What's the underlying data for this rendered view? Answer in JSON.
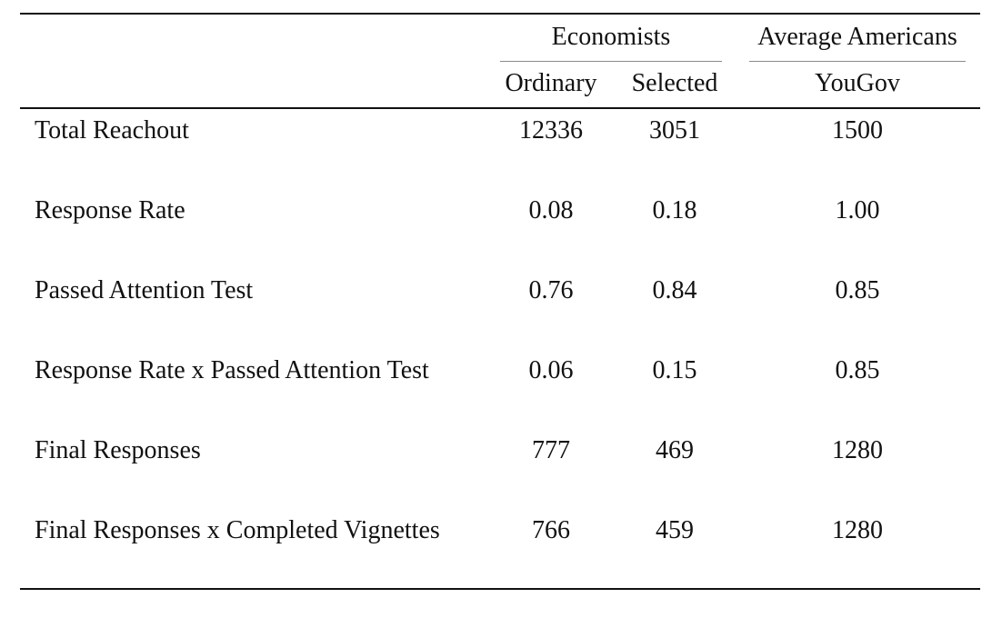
{
  "table": {
    "group_headers": {
      "economists": "Economists",
      "average_americans": "Average Americans"
    },
    "sub_headers": {
      "ordinary": "Ordinary",
      "selected": "Selected",
      "yougov": "YouGov"
    },
    "rows": [
      {
        "label": "Total Reachout",
        "ordinary": "12336",
        "selected": "3051",
        "yougov": "1500"
      },
      {
        "label": "Response Rate",
        "ordinary": "0.08",
        "selected": "0.18",
        "yougov": "1.00"
      },
      {
        "label": "Passed Attention Test",
        "ordinary": "0.76",
        "selected": "0.84",
        "yougov": "0.85"
      },
      {
        "label": "Response Rate x Passed Attention Test",
        "ordinary": "0.06",
        "selected": "0.15",
        "yougov": "0.85"
      },
      {
        "label": "Final Responses",
        "ordinary": "777",
        "selected": "469",
        "yougov": "1280"
      },
      {
        "label": "Final Responses x Completed Vignettes",
        "ordinary": "766",
        "selected": "459",
        "yougov": "1280"
      }
    ]
  }
}
